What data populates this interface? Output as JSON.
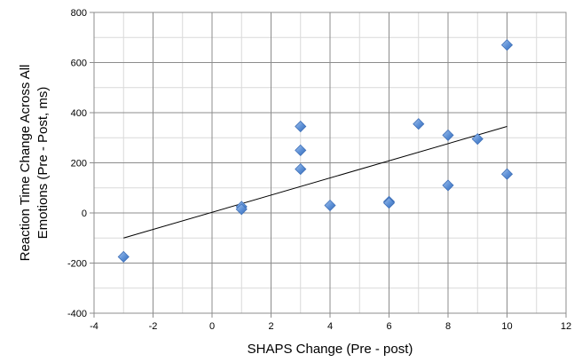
{
  "chart_data": {
    "type": "scatter",
    "title": "",
    "xlabel": "SHAPS Change (Pre - post)",
    "ylabel_lines": [
      "Reaction Time Change Across All",
      "Emotions (Pre - Post, ms)"
    ],
    "xlim": [
      -4,
      12
    ],
    "ylim": [
      -400,
      800
    ],
    "x_ticks": [
      "-4",
      "-2",
      "0",
      "2",
      "4",
      "6",
      "8",
      "10",
      "12"
    ],
    "y_ticks": [
      "-400",
      "-200",
      "0",
      "200",
      "400",
      "600",
      "800"
    ],
    "grid": true,
    "legend": "none",
    "marker_color": "#5b8fd6",
    "trendline_color": "#000000",
    "series": [
      {
        "x": [
          -3,
          1,
          1,
          3,
          3,
          3,
          4,
          6,
          6,
          7,
          8,
          8,
          9,
          10,
          10
        ],
        "y": [
          -175,
          25,
          15,
          345,
          250,
          175,
          30,
          45,
          40,
          355,
          310,
          110,
          295,
          670,
          155
        ]
      }
    ],
    "trendline": {
      "x": [
        -3,
        10
      ],
      "y": [
        -100,
        345
      ]
    }
  }
}
